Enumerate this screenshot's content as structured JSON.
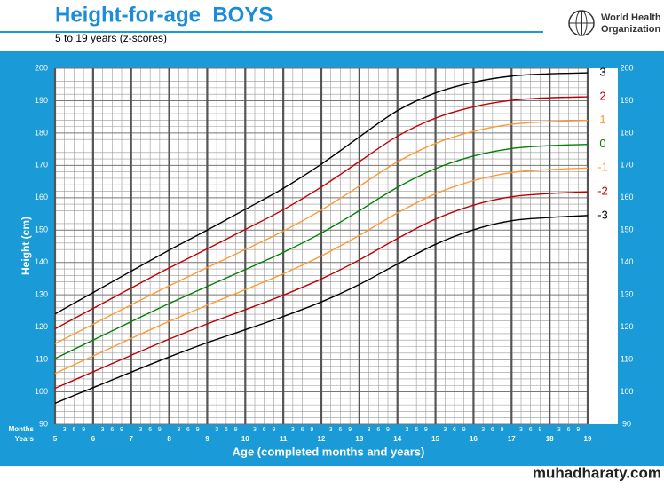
{
  "header": {
    "title": "Height-for-age  BOYS",
    "subtitle": "5 to 19 years (z-scores)",
    "organization": [
      "World Health",
      "Organization"
    ]
  },
  "chart_data": {
    "type": "line",
    "xlabel": "Age (completed months and years)",
    "ylabel": "Height (cm)",
    "months_label": "Months",
    "years_label": "Years",
    "month_labels": [
      "3",
      "6",
      "9"
    ],
    "x": [
      5,
      6,
      7,
      8,
      9,
      10,
      11,
      12,
      13,
      14,
      15,
      16,
      17,
      18,
      19
    ],
    "xlim": [
      5,
      19
    ],
    "xticks": [
      5,
      6,
      7,
      8,
      9,
      10,
      11,
      12,
      13,
      14,
      15,
      16,
      17,
      18,
      19
    ],
    "ylim": [
      90,
      200
    ],
    "yticks": [
      90,
      100,
      110,
      120,
      130,
      140,
      150,
      160,
      170,
      180,
      190,
      200
    ],
    "grid": true,
    "series": [
      {
        "name": "3",
        "color": "#000000",
        "values": [
          124.1,
          130.7,
          137.3,
          143.8,
          150.0,
          156.4,
          162.9,
          170.4,
          178.8,
          186.9,
          192.4,
          195.7,
          197.6,
          198.3,
          198.6
        ]
      },
      {
        "name": "2",
        "color": "#c00000",
        "values": [
          119.5,
          125.8,
          132.1,
          138.3,
          144.2,
          150.2,
          156.3,
          163.3,
          171.2,
          179.0,
          184.6,
          188.1,
          190.1,
          190.9,
          191.2
        ]
      },
      {
        "name": "1",
        "color": "#ff9933",
        "values": [
          114.9,
          120.9,
          126.9,
          132.8,
          138.4,
          144.0,
          149.7,
          156.2,
          163.6,
          171.1,
          176.8,
          180.5,
          182.7,
          183.5,
          183.9
        ]
      },
      {
        "name": "0",
        "color": "#008000",
        "values": [
          110.3,
          116.0,
          121.7,
          127.3,
          132.6,
          137.8,
          143.1,
          149.1,
          156.0,
          163.2,
          169.0,
          172.9,
          175.2,
          176.1,
          176.5
        ]
      },
      {
        "name": "-1",
        "color": "#ff9933",
        "values": [
          105.7,
          111.1,
          116.5,
          121.8,
          126.8,
          131.6,
          136.5,
          142.0,
          148.4,
          155.3,
          161.2,
          165.3,
          167.8,
          168.7,
          169.2
        ]
      },
      {
        "name": "-2",
        "color": "#c00000",
        "values": [
          101.1,
          106.2,
          111.3,
          116.3,
          121.0,
          125.4,
          129.9,
          134.9,
          140.8,
          147.4,
          153.4,
          157.7,
          160.3,
          161.3,
          161.8
        ]
      },
      {
        "name": "-3",
        "color": "#000000",
        "values": [
          96.5,
          101.3,
          106.1,
          110.8,
          115.2,
          119.2,
          123.3,
          127.8,
          133.2,
          139.5,
          145.6,
          150.1,
          152.9,
          153.9,
          154.5
        ]
      }
    ]
  },
  "footer": "muhadharaty.com"
}
